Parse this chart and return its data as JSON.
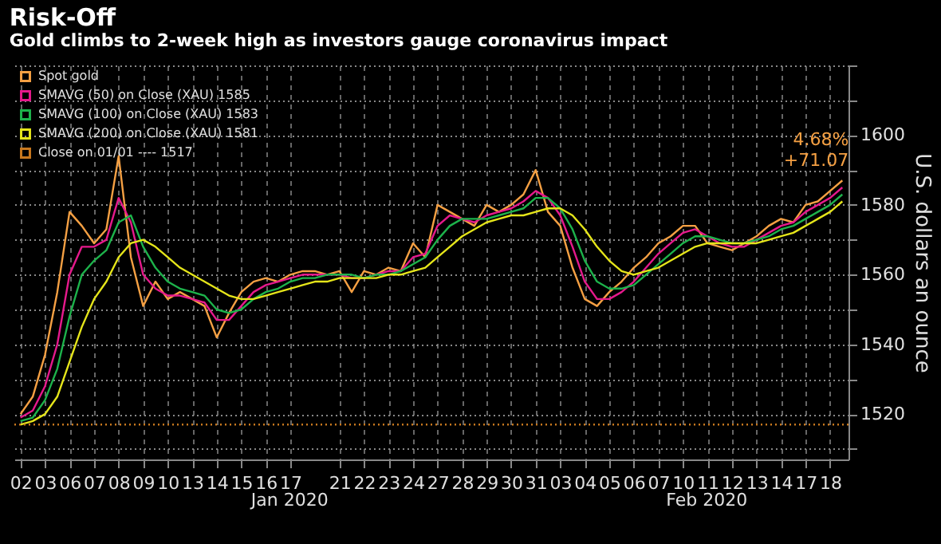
{
  "chart_data": {
    "type": "line",
    "title": "Risk-Off",
    "subtitle": "Gold climbs to 2-week high as investors gauge coronavirus impact",
    "ylabel": "U.S. dollars an ounce",
    "categories": [
      "02",
      null,
      "03",
      null,
      "06",
      null,
      "07",
      null,
      "08",
      null,
      "09",
      null,
      "10",
      null,
      "13",
      null,
      "14",
      null,
      "15",
      null,
      "16",
      null,
      "17",
      null,
      null,
      null,
      "21",
      null,
      "22",
      null,
      "23",
      null,
      "24",
      null,
      "27",
      null,
      "28",
      null,
      "29",
      null,
      "30",
      null,
      "31",
      null,
      "03",
      null,
      "04",
      null,
      "05",
      null,
      "06",
      null,
      "07",
      null,
      "10",
      null,
      "11",
      null,
      "12",
      null,
      "13",
      null,
      "14",
      null,
      "17",
      null,
      "18",
      null
    ],
    "series": [
      {
        "name": "Spot gold",
        "color": "#f5a043",
        "values": [
          1520,
          1525,
          1537,
          1555,
          1578,
          1574,
          1569,
          1573,
          1594,
          1565,
          1551,
          1558,
          1553,
          1555,
          1553,
          1551,
          1542,
          1549,
          1555,
          1558,
          1559,
          1558,
          1560,
          1561,
          1561,
          1560,
          1561,
          1555,
          1561,
          1560,
          1562,
          1561,
          1569,
          1565,
          1580,
          1578,
          1576,
          1574,
          1580,
          1578,
          1580,
          1583,
          1590,
          1578,
          1574,
          1562,
          1553,
          1551,
          1555,
          1558,
          1562,
          1565,
          1569,
          1571,
          1574,
          1574,
          1569,
          1568,
          1567,
          1569,
          1571,
          1574,
          1576,
          1575,
          1580,
          1581,
          1584,
          1587
        ]
      },
      {
        "name": "SMAVG (50)  on Close (XAU) 1585",
        "color": "#e6198c",
        "values": [
          1519,
          1521,
          1528,
          1540,
          1560,
          1568,
          1568,
          1570,
          1582,
          1575,
          1560,
          1556,
          1554,
          1554,
          1553,
          1552,
          1547,
          1547,
          1551,
          1555,
          1557,
          1558,
          1559,
          1560,
          1560,
          1560,
          1560,
          1559,
          1559,
          1560,
          1561,
          1561,
          1565,
          1566,
          1574,
          1577,
          1576,
          1575,
          1577,
          1578,
          1579,
          1581,
          1584,
          1582,
          1577,
          1568,
          1558,
          1553,
          1553,
          1555,
          1558,
          1562,
          1566,
          1569,
          1572,
          1573,
          1571,
          1569,
          1568,
          1568,
          1570,
          1572,
          1574,
          1575,
          1578,
          1580,
          1582,
          1585
        ]
      },
      {
        "name": "SMAVG (100)  on Close (XAU) 1583",
        "color": "#1db34b",
        "values": [
          1518,
          1519,
          1524,
          1533,
          1548,
          1560,
          1564,
          1567,
          1575,
          1577,
          1568,
          1562,
          1558,
          1556,
          1555,
          1554,
          1550,
          1549,
          1550,
          1553,
          1555,
          1556,
          1558,
          1559,
          1559,
          1560,
          1560,
          1560,
          1559,
          1560,
          1560,
          1561,
          1563,
          1565,
          1570,
          1574,
          1576,
          1576,
          1576,
          1577,
          1578,
          1579,
          1582,
          1582,
          1579,
          1573,
          1564,
          1558,
          1556,
          1556,
          1557,
          1560,
          1563,
          1566,
          1569,
          1571,
          1571,
          1570,
          1569,
          1569,
          1570,
          1571,
          1573,
          1574,
          1576,
          1578,
          1580,
          1583
        ]
      },
      {
        "name": "SMAVG (200)  on Close (XAU) 1581",
        "color": "#e5e51a",
        "values": [
          1517,
          1518,
          1520,
          1525,
          1535,
          1545,
          1553,
          1558,
          1565,
          1569,
          1570,
          1568,
          1565,
          1562,
          1560,
          1558,
          1556,
          1554,
          1553,
          1553,
          1554,
          1555,
          1556,
          1557,
          1558,
          1558,
          1559,
          1559,
          1559,
          1559,
          1560,
          1560,
          1561,
          1562,
          1565,
          1568,
          1571,
          1573,
          1575,
          1576,
          1577,
          1577,
          1578,
          1579,
          1579,
          1577,
          1573,
          1568,
          1564,
          1561,
          1560,
          1561,
          1562,
          1564,
          1566,
          1568,
          1569,
          1569,
          1569,
          1569,
          1569,
          1570,
          1571,
          1572,
          1574,
          1576,
          1578,
          1581
        ]
      }
    ],
    "ref_lines": [
      {
        "axis": "y",
        "value": 1517,
        "label": "Close on 01/01 ---- 1517",
        "color": "#c8781e",
        "line_style": "dotted"
      }
    ],
    "ylim": [
      1507,
      1620
    ],
    "yticks": [
      {
        "value": 1510,
        "label": null
      },
      1520,
      {
        "value": 1530,
        "label": null
      },
      1540,
      {
        "value": 1550,
        "label": null
      },
      1560,
      {
        "value": 1570,
        "label": null
      },
      1580,
      {
        "value": 1590,
        "label": null
      },
      1600,
      {
        "value": 1610,
        "label": null
      },
      {
        "value": 1620,
        "label": null
      }
    ],
    "annotations": [
      "4.68%",
      "+71.07",
      "Jan 2020",
      "Feb 2020"
    ],
    "grid": true,
    "legend": "top left",
    "line_style": "solid",
    "marker": "none"
  }
}
